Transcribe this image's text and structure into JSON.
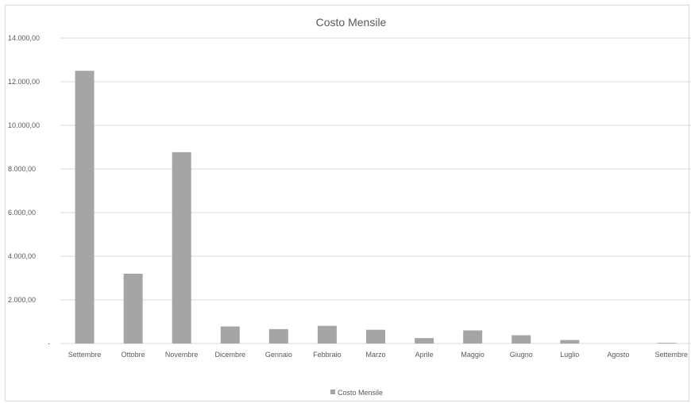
{
  "chart_data": {
    "type": "bar",
    "title": "Costo Mensile",
    "xlabel": "",
    "ylabel": "",
    "categories": [
      "Settembre",
      "Ottobre",
      "Novembre",
      "Dicembre",
      "Gennaio",
      "Febbraio",
      "Marzo",
      "Aprile",
      "Maggio",
      "Giugno",
      "Luglio",
      "Agosto",
      "Settembre"
    ],
    "series": [
      {
        "name": "Costo Mensile",
        "color": "#a5a5a5",
        "values": [
          12500,
          3200,
          8770,
          780,
          660,
          810,
          630,
          250,
          600,
          380,
          160,
          0,
          30
        ]
      }
    ],
    "ylim": [
      0,
      14000
    ],
    "yticks": [
      0,
      2000,
      4000,
      6000,
      8000,
      10000,
      12000,
      14000
    ],
    "ytick_labels": [
      "-",
      "2.000,00",
      "4.000,00",
      "6.000,00",
      "8.000,00",
      "10.000,00",
      "12.000,00",
      "14.000,00"
    ],
    "grid": true,
    "legend_position": "bottom",
    "colors": {
      "gridline": "#d9d9d9",
      "text": "#595959",
      "title": "#595959"
    }
  }
}
